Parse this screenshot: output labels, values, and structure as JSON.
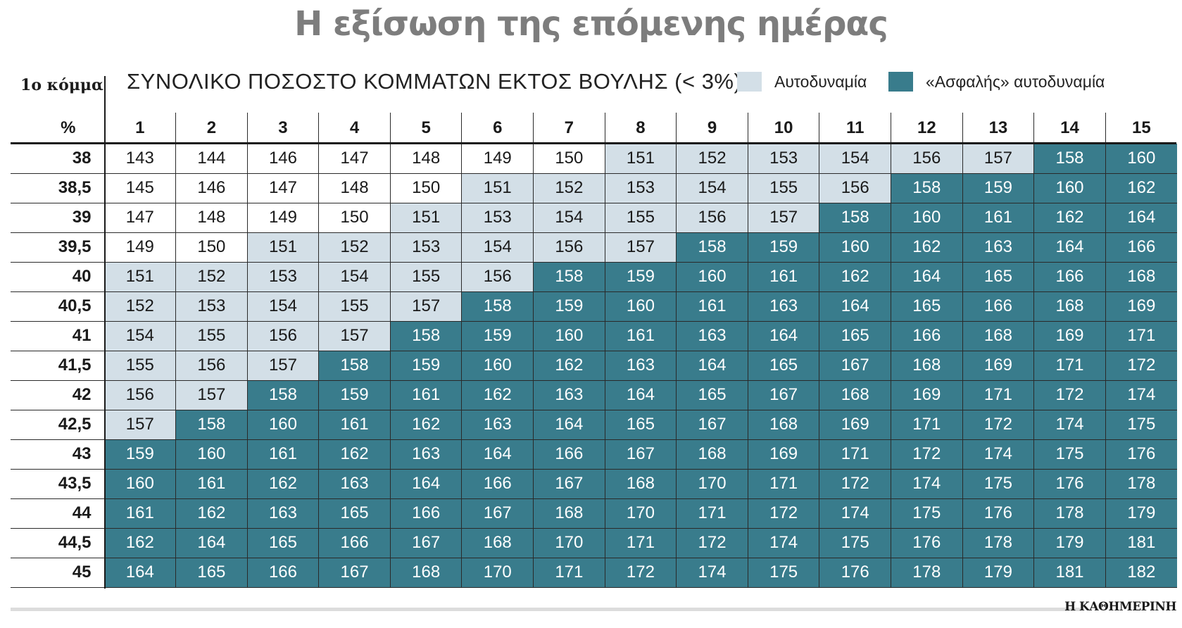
{
  "title": "Η εξίσωση της επόμενης ημέρας",
  "row_header_title": "1ο κόμμα",
  "row_header_unit": "%",
  "subtitle": "ΣΥΝΟΛΙΚΟ ΠΟΣΟΣΤΟ ΚΟΜΜΑΤΩΝ ΕΚΤΟΣ ΒΟΥΛΗΣ (< 3%)",
  "legend": [
    {
      "label": "Αυτοδυναμία",
      "color": "#d3dfe7"
    },
    {
      "label": "«Ασφαλής» αυτοδυναμία",
      "color": "#397c8c"
    }
  ],
  "credit": "Η ΚΑΘΗΜΕΡΙΝΗ",
  "colors": {
    "normal": "#ffffff",
    "light": "#d3dfe7",
    "dark": "#397c8c"
  },
  "chart_data": {
    "type": "table",
    "columns": [
      "1",
      "2",
      "3",
      "4",
      "5",
      "6",
      "7",
      "8",
      "9",
      "10",
      "11",
      "12",
      "13",
      "14",
      "15"
    ],
    "rows": [
      "38",
      "38,5",
      "39",
      "39,5",
      "40",
      "40,5",
      "41",
      "41,5",
      "42",
      "42,5",
      "43",
      "43,5",
      "44",
      "44,5",
      "45"
    ],
    "values": [
      [
        143,
        144,
        146,
        147,
        148,
        149,
        150,
        151,
        152,
        153,
        154,
        156,
        157,
        158,
        160
      ],
      [
        145,
        146,
        147,
        148,
        150,
        151,
        152,
        153,
        154,
        155,
        156,
        158,
        159,
        160,
        162
      ],
      [
        147,
        148,
        149,
        150,
        151,
        153,
        154,
        155,
        156,
        157,
        158,
        160,
        161,
        162,
        164
      ],
      [
        149,
        150,
        151,
        152,
        153,
        154,
        156,
        157,
        158,
        159,
        160,
        162,
        163,
        164,
        166
      ],
      [
        151,
        152,
        153,
        154,
        155,
        156,
        158,
        159,
        160,
        161,
        162,
        164,
        165,
        166,
        168
      ],
      [
        152,
        153,
        154,
        155,
        157,
        158,
        159,
        160,
        161,
        163,
        164,
        165,
        166,
        168,
        169
      ],
      [
        154,
        155,
        156,
        157,
        158,
        159,
        160,
        161,
        163,
        164,
        165,
        166,
        168,
        169,
        171
      ],
      [
        155,
        156,
        157,
        158,
        159,
        160,
        162,
        163,
        164,
        165,
        167,
        168,
        169,
        171,
        172
      ],
      [
        156,
        157,
        158,
        159,
        161,
        162,
        163,
        164,
        165,
        167,
        168,
        169,
        171,
        172,
        174
      ],
      [
        157,
        158,
        160,
        161,
        162,
        163,
        164,
        165,
        167,
        168,
        169,
        171,
        172,
        174,
        175
      ],
      [
        159,
        160,
        161,
        162,
        163,
        164,
        166,
        167,
        168,
        169,
        171,
        172,
        174,
        175,
        176
      ],
      [
        160,
        161,
        162,
        163,
        164,
        166,
        167,
        168,
        170,
        171,
        172,
        174,
        175,
        176,
        178
      ],
      [
        161,
        162,
        163,
        165,
        166,
        167,
        168,
        170,
        171,
        172,
        174,
        175,
        176,
        178,
        179
      ],
      [
        162,
        164,
        165,
        166,
        167,
        168,
        170,
        171,
        172,
        174,
        175,
        176,
        178,
        179,
        181
      ],
      [
        164,
        165,
        166,
        167,
        168,
        170,
        171,
        172,
        174,
        175,
        176,
        178,
        179,
        181,
        182
      ]
    ],
    "categories": [
      [
        "n",
        "n",
        "n",
        "n",
        "n",
        "n",
        "n",
        "l",
        "l",
        "l",
        "l",
        "l",
        "l",
        "d",
        "d"
      ],
      [
        "n",
        "n",
        "n",
        "n",
        "n",
        "l",
        "l",
        "l",
        "l",
        "l",
        "l",
        "d",
        "d",
        "d",
        "d"
      ],
      [
        "n",
        "n",
        "n",
        "n",
        "l",
        "l",
        "l",
        "l",
        "l",
        "l",
        "d",
        "d",
        "d",
        "d",
        "d"
      ],
      [
        "n",
        "n",
        "l",
        "l",
        "l",
        "l",
        "l",
        "l",
        "d",
        "d",
        "d",
        "d",
        "d",
        "d",
        "d"
      ],
      [
        "l",
        "l",
        "l",
        "l",
        "l",
        "l",
        "d",
        "d",
        "d",
        "d",
        "d",
        "d",
        "d",
        "d",
        "d"
      ],
      [
        "l",
        "l",
        "l",
        "l",
        "l",
        "d",
        "d",
        "d",
        "d",
        "d",
        "d",
        "d",
        "d",
        "d",
        "d"
      ],
      [
        "l",
        "l",
        "l",
        "l",
        "d",
        "d",
        "d",
        "d",
        "d",
        "d",
        "d",
        "d",
        "d",
        "d",
        "d"
      ],
      [
        "l",
        "l",
        "l",
        "d",
        "d",
        "d",
        "d",
        "d",
        "d",
        "d",
        "d",
        "d",
        "d",
        "d",
        "d"
      ],
      [
        "l",
        "l",
        "d",
        "d",
        "d",
        "d",
        "d",
        "d",
        "d",
        "d",
        "d",
        "d",
        "d",
        "d",
        "d"
      ],
      [
        "l",
        "d",
        "d",
        "d",
        "d",
        "d",
        "d",
        "d",
        "d",
        "d",
        "d",
        "d",
        "d",
        "d",
        "d"
      ],
      [
        "d",
        "d",
        "d",
        "d",
        "d",
        "d",
        "d",
        "d",
        "d",
        "d",
        "d",
        "d",
        "d",
        "d",
        "d"
      ],
      [
        "d",
        "d",
        "d",
        "d",
        "d",
        "d",
        "d",
        "d",
        "d",
        "d",
        "d",
        "d",
        "d",
        "d",
        "d"
      ],
      [
        "d",
        "d",
        "d",
        "d",
        "d",
        "d",
        "d",
        "d",
        "d",
        "d",
        "d",
        "d",
        "d",
        "d",
        "d"
      ],
      [
        "d",
        "d",
        "d",
        "d",
        "d",
        "d",
        "d",
        "d",
        "d",
        "d",
        "d",
        "d",
        "d",
        "d",
        "d"
      ],
      [
        "d",
        "d",
        "d",
        "d",
        "d",
        "d",
        "d",
        "d",
        "d",
        "d",
        "d",
        "d",
        "d",
        "d",
        "d"
      ]
    ],
    "category_legend": {
      "n": "",
      "l": "Αυτοδυναμία",
      "d": "«Ασφαλής» αυτοδυναμία"
    }
  }
}
